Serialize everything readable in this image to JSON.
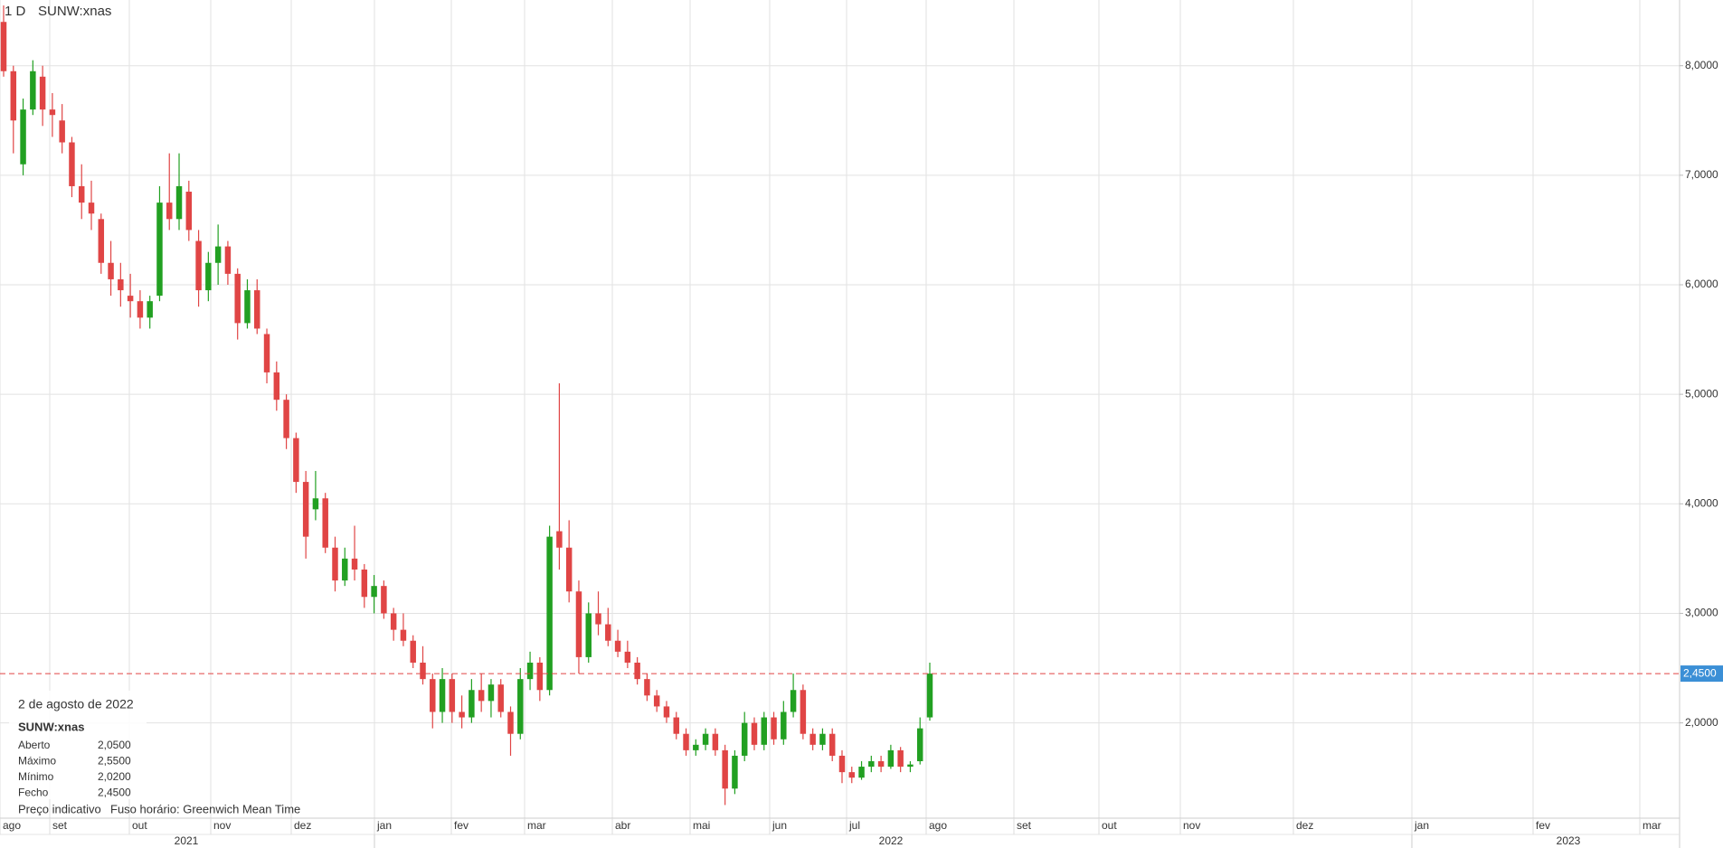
{
  "chart_data": {
    "type": "candlestick",
    "interval": "1 D",
    "symbol": "SUNW:xnas",
    "ylim": [
      1.13,
      8.6
    ],
    "yticks": [
      {
        "value": 2,
        "label": "2,0000"
      },
      {
        "value": 3,
        "label": "3,0000"
      },
      {
        "value": 4,
        "label": "4,0000"
      },
      {
        "value": 5,
        "label": "5,0000"
      },
      {
        "value": 6,
        "label": "6,0000"
      },
      {
        "value": 7,
        "label": "7,0000"
      },
      {
        "value": 8,
        "label": "8,0000"
      }
    ],
    "grid": true,
    "up_color": "#22a022",
    "down_color": "#e04545",
    "last_price": {
      "value": 2.45,
      "label": "2,4500",
      "color": "#e04545",
      "label_color": "#3b8fd6"
    },
    "months": [
      "ago",
      "set",
      "out",
      "nov",
      "dez",
      "jan",
      "fev",
      "mar",
      "abr",
      "mai",
      "jun",
      "jul",
      "ago",
      "set",
      "out",
      "nov",
      "dez",
      "jan",
      "fev",
      "mar"
    ],
    "years": [
      "2021",
      "2022",
      "2023"
    ],
    "open": [
      8.4,
      7.95,
      7.1,
      7.6,
      7.9,
      7.6,
      7.5,
      7.3,
      6.9,
      6.75,
      6.6,
      6.2,
      6.05,
      5.9,
      5.85,
      5.7,
      5.9,
      6.75,
      6.6,
      6.85,
      6.4,
      5.95,
      6.2,
      6.35,
      6.1,
      5.65,
      5.95,
      5.55,
      5.2,
      4.95,
      4.6,
      4.2,
      3.95,
      4.05,
      3.6,
      3.3,
      3.5,
      3.4,
      3.15,
      3.25,
      3.0,
      2.85,
      2.75,
      2.55,
      2.4,
      2.1,
      2.4,
      2.1,
      2.05,
      2.3,
      2.2,
      2.35,
      2.1,
      1.9,
      2.4,
      2.55,
      2.3,
      3.75,
      3.6,
      3.2,
      2.6,
      3.0,
      2.9,
      2.75,
      2.65,
      2.55,
      2.4,
      2.25,
      2.15,
      2.05,
      1.9,
      1.75,
      1.8,
      1.9,
      1.75,
      1.4,
      1.7,
      2.0,
      1.8,
      2.05,
      1.85,
      2.1,
      2.3,
      1.9,
      1.8,
      1.9,
      1.7,
      1.55,
      1.5,
      1.6,
      1.65,
      1.6,
      1.75,
      1.6,
      1.65,
      2.05
    ],
    "high": [
      8.55,
      8.0,
      7.7,
      8.05,
      8.0,
      7.75,
      7.65,
      7.35,
      7.1,
      6.95,
      6.65,
      6.4,
      6.2,
      6.1,
      5.95,
      5.9,
      6.9,
      7.2,
      7.2,
      6.95,
      6.5,
      6.3,
      6.55,
      6.4,
      6.15,
      6.05,
      6.05,
      5.6,
      5.3,
      5.0,
      4.65,
      4.3,
      4.3,
      4.1,
      3.7,
      3.6,
      3.8,
      3.45,
      3.35,
      3.3,
      3.05,
      3.0,
      2.8,
      2.7,
      2.45,
      2.5,
      2.45,
      2.25,
      2.4,
      2.45,
      2.4,
      2.4,
      2.15,
      2.5,
      2.65,
      2.6,
      3.8,
      5.1,
      3.85,
      3.3,
      3.1,
      3.2,
      3.05,
      2.85,
      2.75,
      2.6,
      2.45,
      2.3,
      2.2,
      2.1,
      1.95,
      1.85,
      1.95,
      1.95,
      1.8,
      1.75,
      2.1,
      2.05,
      2.1,
      2.1,
      2.2,
      2.45,
      2.35,
      1.95,
      1.95,
      1.95,
      1.75,
      1.6,
      1.65,
      1.7,
      1.7,
      1.8,
      1.78,
      1.65,
      2.05,
      2.55
    ],
    "low": [
      7.9,
      7.2,
      7.0,
      7.55,
      7.45,
      7.35,
      7.2,
      6.8,
      6.6,
      6.5,
      6.1,
      5.9,
      5.8,
      5.7,
      5.6,
      5.6,
      5.85,
      6.5,
      6.5,
      6.4,
      5.8,
      5.85,
      6.0,
      6.0,
      5.5,
      5.6,
      5.55,
      5.1,
      4.85,
      4.5,
      4.1,
      3.5,
      3.85,
      3.55,
      3.2,
      3.25,
      3.3,
      3.05,
      3.0,
      2.95,
      2.75,
      2.7,
      2.5,
      2.35,
      1.95,
      2.0,
      2.0,
      1.95,
      2.0,
      2.1,
      2.05,
      2.05,
      1.7,
      1.85,
      2.3,
      2.2,
      2.25,
      3.4,
      3.1,
      2.45,
      2.55,
      2.8,
      2.7,
      2.6,
      2.5,
      2.35,
      2.2,
      2.1,
      2.0,
      1.85,
      1.7,
      1.7,
      1.75,
      1.7,
      1.25,
      1.35,
      1.65,
      1.75,
      1.75,
      1.8,
      1.8,
      2.05,
      1.85,
      1.75,
      1.75,
      1.65,
      1.45,
      1.45,
      1.48,
      1.55,
      1.55,
      1.58,
      1.55,
      1.55,
      1.62,
      2.02
    ],
    "close": [
      7.95,
      7.5,
      7.6,
      7.95,
      7.6,
      7.55,
      7.3,
      6.9,
      6.75,
      6.65,
      6.2,
      6.05,
      5.95,
      5.85,
      5.7,
      5.85,
      6.75,
      6.6,
      6.9,
      6.5,
      5.95,
      6.2,
      6.35,
      6.1,
      5.65,
      5.95,
      5.6,
      5.2,
      4.95,
      4.6,
      4.2,
      3.7,
      4.05,
      3.6,
      3.3,
      3.5,
      3.4,
      3.15,
      3.25,
      3.0,
      2.85,
      2.75,
      2.55,
      2.4,
      2.1,
      2.4,
      2.1,
      2.05,
      2.3,
      2.2,
      2.35,
      2.1,
      1.9,
      2.4,
      2.55,
      2.3,
      3.7,
      3.6,
      3.2,
      2.6,
      3.0,
      2.9,
      2.75,
      2.65,
      2.55,
      2.4,
      2.25,
      2.15,
      2.05,
      1.9,
      1.75,
      1.8,
      1.9,
      1.75,
      1.4,
      1.7,
      2.0,
      1.8,
      2.05,
      1.85,
      2.1,
      2.3,
      1.9,
      1.8,
      1.9,
      1.7,
      1.55,
      1.5,
      1.6,
      1.65,
      1.6,
      1.75,
      1.6,
      1.62,
      1.95,
      2.45
    ],
    "info": {
      "date": "2 de agosto de 2022",
      "symbol": "SUNW:xnas",
      "rows": [
        [
          "Aberto",
          "2,0500"
        ],
        [
          "Máximo",
          "2,5500"
        ],
        [
          "Mínimo",
          "2,0200"
        ],
        [
          "Fecho",
          "2,4500"
        ]
      ],
      "footer": [
        "Preço indicativo",
        "Fuso horário: Greenwich Mean Time"
      ]
    }
  }
}
